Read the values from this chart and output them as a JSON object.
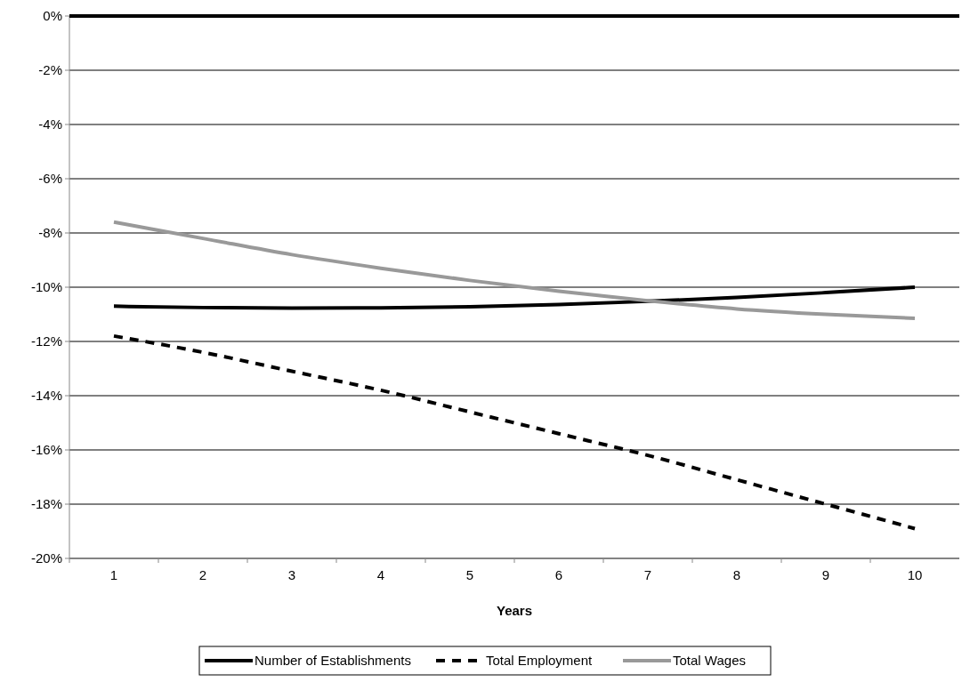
{
  "chart_data": {
    "type": "line",
    "xlabel": "Years",
    "categories": [
      "1",
      "2",
      "3",
      "4",
      "5",
      "6",
      "7",
      "8",
      "9",
      "10"
    ],
    "series": [
      {
        "name": "Number of Establishments",
        "color": "#000000",
        "line_style": "solid",
        "values": [
          -10.7,
          -10.75,
          -10.77,
          -10.76,
          -10.72,
          -10.64,
          -10.52,
          -10.38,
          -10.2,
          -10.0
        ]
      },
      {
        "name": "Total Employment",
        "color": "#000000",
        "line_style": "dashed",
        "values": [
          -11.8,
          -12.4,
          -13.1,
          -13.8,
          -14.6,
          -15.4,
          -16.2,
          -17.1,
          -18.0,
          -18.9
        ]
      },
      {
        "name": "Total Wages",
        "color": "#999999",
        "line_style": "solid",
        "values": [
          -7.6,
          -8.2,
          -8.8,
          -9.3,
          -9.75,
          -10.15,
          -10.5,
          -10.8,
          -11.0,
          -11.15
        ]
      }
    ],
    "ylim": [
      -20,
      0
    ],
    "yticks": [
      {
        "value": 0,
        "label": "0%"
      },
      {
        "value": -2,
        "label": "-2%"
      },
      {
        "value": -4,
        "label": "-4%"
      },
      {
        "value": -6,
        "label": "-6%"
      },
      {
        "value": -8,
        "label": "-8%"
      },
      {
        "value": -10,
        "label": "-10%"
      },
      {
        "value": -12,
        "label": "-12%"
      },
      {
        "value": -14,
        "label": "-14%"
      },
      {
        "value": -16,
        "label": "-16%"
      },
      {
        "value": -18,
        "label": "-18%"
      },
      {
        "value": -20,
        "label": "-20%"
      }
    ],
    "grid": "y",
    "legend": "bottom"
  }
}
